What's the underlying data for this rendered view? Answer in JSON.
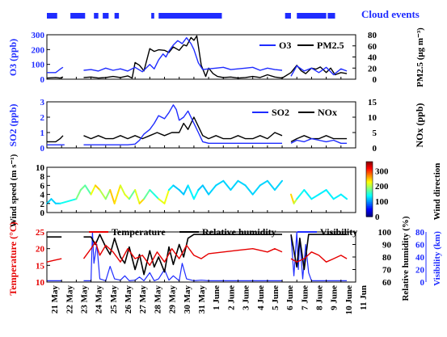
{
  "colors": {
    "blue": "#1f2cff",
    "black": "#000000",
    "red": "#e60000",
    "cloud": "#1f2cff"
  },
  "chart_data": [
    {
      "type": "bar",
      "title": "Cloud events",
      "segments_day": [
        [
          0,
          0.7
        ],
        [
          1.6,
          2.6
        ],
        [
          3.2,
          3.5
        ],
        [
          3.8,
          4.2
        ],
        [
          4.6,
          4.9
        ],
        [
          7.1,
          7.3
        ],
        [
          7.6,
          11.9
        ],
        [
          16.2,
          16.6
        ],
        [
          17.0,
          19.0
        ],
        [
          19.1,
          19.6
        ]
      ]
    },
    {
      "type": "line",
      "ylabel": "O3 (ppb)",
      "y2label": "PM2.5 (μg m⁻³)",
      "legend": [
        "O3",
        "PM2.5"
      ],
      "ylim": [
        0,
        300
      ],
      "yticks": [
        "0",
        "100",
        "200",
        "300"
      ],
      "y2lim": [
        0,
        80
      ],
      "y2ticks": [
        "0",
        "20",
        "40",
        "60",
        "80"
      ],
      "series": [
        {
          "name": "O3",
          "color": "blue",
          "axis": "left",
          "x": [
            0,
            0.6,
            0.8,
            1.0,
            1.1,
            2.0,
            2.5,
            3.0,
            3.5,
            4.0,
            4.5,
            5.0,
            5.5,
            6.0,
            6.5,
            7.0,
            7.3,
            7.6,
            7.9,
            8.1,
            8.3,
            8.6,
            8.9,
            9.2,
            9.5,
            9.8,
            10.0,
            10.3,
            10.6,
            11.0,
            11.5,
            12.0,
            12.5,
            13.0,
            13.5,
            14.0,
            14.5,
            15.0,
            15.5,
            16.0,
            null,
            16.6,
            17.0,
            17.5,
            18.0,
            18.5,
            19.0,
            19.5,
            20.0,
            20.4
          ],
          "values": [
            45,
            45,
            60,
            75,
            80,
            null,
            60,
            65,
            55,
            75,
            60,
            70,
            55,
            80,
            50,
            100,
            70,
            130,
            170,
            150,
            190,
            230,
            260,
            240,
            280,
            240,
            200,
            110,
            65,
            70,
            75,
            80,
            65,
            70,
            75,
            80,
            60,
            75,
            65,
            60,
            null,
            20,
            90,
            55,
            75,
            45,
            80,
            30,
            70,
            55
          ]
        },
        {
          "name": "PM2.5",
          "color": "black",
          "axis": "right",
          "x": [
            0,
            0.6,
            0.9,
            1.1,
            2.0,
            2.5,
            3.0,
            3.5,
            4.0,
            4.5,
            5.0,
            5.5,
            5.8,
            6.0,
            6.3,
            6.6,
            7.0,
            7.3,
            7.6,
            8.0,
            8.3,
            8.6,
            9.0,
            9.3,
            9.5,
            9.8,
            10.0,
            10.2,
            10.5,
            10.8,
            11.0,
            11.3,
            11.6,
            12.0,
            12.5,
            13.0,
            13.5,
            14.0,
            14.5,
            15.0,
            15.5,
            16.0,
            16.6,
            17.0,
            17.3,
            17.6,
            18.0,
            18.3,
            18.6,
            19.0,
            19.3,
            19.6,
            20.0,
            20.4
          ],
          "values": [
            2,
            3,
            2,
            4,
            null,
            3,
            4,
            2,
            3,
            5,
            3,
            6,
            2,
            30,
            25,
            15,
            55,
            50,
            53,
            52,
            48,
            58,
            52,
            62,
            60,
            75,
            70,
            78,
            25,
            5,
            20,
            10,
            5,
            3,
            4,
            2,
            3,
            5,
            3,
            8,
            4,
            2,
            12,
            25,
            15,
            10,
            20,
            18,
            22,
            12,
            20,
            8,
            12,
            10
          ]
        }
      ]
    },
    {
      "type": "line",
      "ylabel": "SO2 (ppb)",
      "y2label": "NOx (ppb)",
      "legend": [
        "SO2",
        "NOx"
      ],
      "ylim": [
        0,
        3
      ],
      "yticks": [
        "0",
        "1",
        "2",
        "3"
      ],
      "y2lim": [
        0,
        15
      ],
      "y2ticks": [
        "0",
        "5",
        "10",
        "15"
      ],
      "series": [
        {
          "name": "SO2",
          "color": "blue",
          "axis": "left",
          "x": [
            0,
            0.6,
            1.0,
            1.2,
            2.0,
            2.5,
            3.0,
            3.5,
            4.0,
            4.5,
            5.0,
            5.5,
            6.0,
            6.3,
            6.6,
            7.0,
            7.3,
            7.6,
            8.0,
            8.3,
            8.6,
            8.8,
            9.0,
            9.3,
            9.6,
            10.0,
            10.3,
            10.6,
            11.0,
            12.0,
            13.0,
            14.0,
            15.0,
            16.0,
            null,
            16.6,
            17.0,
            17.5,
            18.0,
            18.5,
            19.0,
            19.5,
            20.0,
            20.4
          ],
          "values": [
            0.2,
            0.2,
            0.2,
            0.2,
            null,
            0.2,
            0.2,
            0.2,
            0.2,
            0.2,
            0.2,
            0.2,
            0.25,
            0.5,
            0.9,
            1.2,
            1.6,
            2.1,
            1.9,
            2.3,
            2.8,
            2.5,
            1.8,
            2.0,
            2.4,
            1.6,
            1.0,
            0.4,
            0.3,
            0.3,
            0.3,
            0.3,
            0.3,
            0.3,
            null,
            0.3,
            0.5,
            0.4,
            0.6,
            0.5,
            0.4,
            0.5,
            0.3,
            0.3
          ]
        },
        {
          "name": "NOx",
          "color": "black",
          "axis": "right",
          "x": [
            0,
            0.6,
            0.9,
            1.1,
            2.0,
            2.5,
            3.0,
            3.5,
            4.0,
            4.5,
            5.0,
            5.5,
            6.0,
            6.5,
            7.0,
            7.5,
            8.0,
            8.5,
            9.0,
            9.3,
            9.6,
            10.0,
            10.3,
            10.6,
            11.0,
            11.5,
            12.0,
            12.5,
            13.0,
            13.5,
            14.0,
            14.5,
            15.0,
            15.5,
            16.0,
            null,
            16.6,
            17.0,
            17.5,
            18.0,
            18.5,
            19.0,
            19.5,
            20.0,
            20.4
          ],
          "values": [
            2,
            2,
            3,
            4,
            null,
            4,
            3,
            4,
            3,
            3,
            4,
            3,
            4,
            3,
            4,
            5,
            4,
            5,
            5,
            8,
            6,
            10,
            7,
            4,
            3,
            4,
            3,
            3,
            4,
            3,
            3,
            4,
            3,
            5,
            4,
            null,
            2,
            3,
            4,
            3,
            3,
            4,
            3,
            3,
            3
          ]
        }
      ]
    },
    {
      "type": "line",
      "ylabel": "Wind speed (m s⁻¹)",
      "colorbar_label": "Wind direction",
      "ylim": [
        0,
        10
      ],
      "yticks": [
        "0",
        "2",
        "4",
        "6",
        "8",
        "10"
      ],
      "colorbar_ticks": [
        "0",
        "100",
        "200",
        "300"
      ],
      "colorbar_lim": [
        0,
        360
      ],
      "series": [
        {
          "name": "Wind speed",
          "x": [
            0,
            0.3,
            0.6,
            0.9,
            2.0,
            2.3,
            2.6,
            3.0,
            3.3,
            3.6,
            4.0,
            4.3,
            4.6,
            5.0,
            5.3,
            5.6,
            6.0,
            6.3,
            6.6,
            7.0,
            7.3,
            7.6,
            8.0,
            8.3,
            8.6,
            9.0,
            9.3,
            9.6,
            10.0,
            10.3,
            10.6,
            11.0,
            11.5,
            12.0,
            12.5,
            13.0,
            13.5,
            14.0,
            14.5,
            15.0,
            15.5,
            16.0,
            null,
            16.6,
            16.8,
            17.0,
            17.5,
            18.0,
            18.5,
            19.0,
            19.5,
            20.0,
            20.4
          ],
          "values": [
            2,
            3,
            2,
            2,
            3,
            5,
            6,
            4,
            6,
            5,
            3,
            5,
            2,
            6,
            4,
            3,
            5,
            2,
            3,
            5,
            4,
            3,
            2,
            5,
            6,
            5,
            4,
            6,
            3,
            5,
            6,
            4,
            6,
            7,
            5,
            7,
            6,
            4,
            6,
            7,
            5,
            7,
            null,
            4,
            2,
            3,
            5,
            3,
            4,
            5,
            3,
            4,
            3
          ],
          "dir": [
            120,
            120,
            120,
            120,
            160,
            200,
            150,
            180,
            260,
            230,
            170,
            200,
            290,
            180,
            240,
            190,
            150,
            280,
            200,
            140,
            160,
            130,
            300,
            140,
            120,
            110,
            120,
            110,
            150,
            120,
            110,
            120,
            120,
            120,
            120,
            120,
            120,
            120,
            120,
            120,
            120,
            120,
            null,
            220,
            260,
            150,
            130,
            130,
            130,
            130,
            130,
            130,
            130
          ]
        }
      ]
    },
    {
      "type": "line",
      "legend": [
        "Temperature",
        "Relative humidity",
        "Visibility"
      ],
      "ylabel": "Temperature (°C)",
      "y2label": "Relative humidity (%)",
      "y3label": "Visibility (km)",
      "ylim": [
        10,
        25
      ],
      "yticks": [
        "10",
        "15",
        "20",
        "25"
      ],
      "y2lim": [
        60,
        100
      ],
      "y2ticks": [
        "60",
        "70",
        "80",
        "90",
        "100"
      ],
      "y3lim": [
        0,
        80
      ],
      "y3ticks": [
        "0",
        "20",
        "40",
        "60",
        "80"
      ],
      "series": [
        {
          "name": "Temperature",
          "color": "red",
          "axis": "left",
          "x": [
            0,
            0.5,
            1.0,
            2.0,
            2.5,
            3.0,
            3.3,
            3.6,
            4.0,
            4.5,
            5.0,
            5.5,
            6.0,
            6.5,
            7.0,
            7.5,
            8.0,
            8.5,
            9.0,
            9.5,
            10.0,
            10.5,
            11.0,
            12.0,
            13.0,
            14.0,
            15.0,
            15.5,
            16.0,
            null,
            16.6,
            17.0,
            17.5,
            18.0,
            18.5,
            19.0,
            19.5,
            20.0,
            20.4
          ],
          "values": [
            16,
            16.5,
            17,
            null,
            17,
            20,
            22,
            18,
            21,
            19,
            16,
            20,
            17,
            18,
            15,
            19,
            16,
            20,
            17,
            21,
            18,
            17,
            18.5,
            19,
            19.5,
            20,
            19,
            20,
            19,
            null,
            17,
            16,
            17,
            19,
            18,
            16,
            17,
            18,
            17
          ]
        },
        {
          "name": "Relative humidity",
          "color": "black",
          "axis": "right",
          "x": [
            0,
            0.5,
            1.0,
            2.0,
            2.5,
            3.0,
            3.3,
            3.6,
            4.0,
            4.3,
            4.6,
            5.0,
            5.3,
            5.6,
            6.0,
            6.3,
            6.6,
            7.0,
            7.3,
            7.6,
            8.0,
            8.3,
            8.6,
            9.0,
            9.3,
            9.6,
            10.0,
            10.3,
            10.6,
            11.0,
            12.0,
            13.0,
            14.0,
            15.0,
            16.0,
            null,
            16.6,
            17.0,
            17.2,
            17.5,
            17.8,
            18.0,
            18.5,
            19.0,
            19.5,
            20.0,
            20.4
          ],
          "values": [
            96,
            96,
            96,
            null,
            96,
            96,
            90,
            98,
            88,
            82,
            95,
            80,
            75,
            88,
            70,
            82,
            66,
            85,
            72,
            80,
            68,
            88,
            74,
            90,
            80,
            95,
            98,
            98,
            98,
            98,
            98,
            98,
            98,
            98,
            98,
            null,
            98,
            72,
            95,
            70,
            98,
            98,
            98,
            98,
            98,
            98,
            98
          ]
        },
        {
          "name": "Visibility",
          "color": "blue",
          "axis": "third",
          "x": [
            0,
            0.5,
            1.0,
            2.0,
            2.5,
            3.0,
            3.1,
            3.2,
            3.4,
            3.6,
            4.0,
            4.3,
            4.6,
            5.0,
            5.3,
            5.6,
            6.0,
            6.3,
            6.6,
            7.0,
            7.3,
            7.6,
            8.0,
            8.3,
            8.6,
            9.0,
            9.2,
            9.5,
            10.0,
            10.5,
            11.0,
            11.5,
            12.0,
            13.0,
            14.0,
            15.0,
            16.0,
            null,
            16.6,
            16.8,
            17.0,
            17.1,
            17.2,
            17.4,
            17.6,
            17.8,
            18.0,
            18.5,
            19.0,
            19.5,
            20.0,
            20.4
          ],
          "values": [
            2,
            2,
            2,
            null,
            2,
            2,
            80,
            30,
            60,
            5,
            2,
            25,
            5,
            3,
            10,
            2,
            3,
            8,
            2,
            15,
            2,
            5,
            20,
            3,
            10,
            2,
            30,
            5,
            2,
            3,
            2,
            2,
            2,
            2,
            2,
            2,
            2,
            null,
            75,
            10,
            80,
            20,
            70,
            5,
            60,
            15,
            2,
            2,
            2,
            2,
            2,
            2
          ]
        }
      ]
    }
  ],
  "x_axis": {
    "tick_labels": [
      "21 May",
      "22 May",
      "23 May",
      "24 May",
      "25 May",
      "26 May",
      "27 May",
      "28 May",
      "29 May",
      "30 May",
      "31 May",
      "1 June",
      "2 June",
      "3 June",
      "4 June",
      "5 June",
      "6 June",
      "7 June",
      "8 June",
      "9 June",
      "10 June",
      "11 Jun"
    ]
  }
}
